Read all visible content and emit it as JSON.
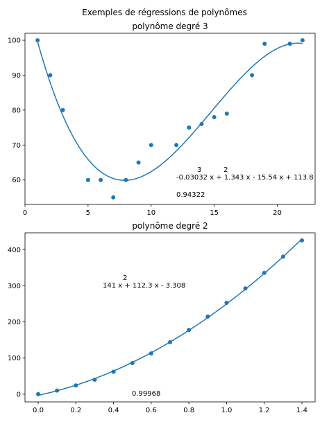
{
  "figure": {
    "suptitle": "Exemples de régressions de polynômes"
  },
  "colors": {
    "series": "#1f77b4"
  },
  "chart_data": [
    {
      "type": "scatter",
      "title": "polynôme degré 3",
      "xlabel": "",
      "ylabel": "",
      "xlim": [
        0,
        23
      ],
      "ylim": [
        53,
        102
      ],
      "xticks": [
        0,
        5,
        10,
        15,
        20
      ],
      "yticks": [
        60,
        70,
        80,
        90,
        100
      ],
      "grid": false,
      "legend": "none",
      "x": [
        1,
        2,
        3,
        5,
        6,
        7,
        8,
        9,
        10,
        12,
        13,
        14,
        15,
        16,
        18,
        19,
        21,
        22
      ],
      "y": [
        100,
        90,
        80,
        60,
        60,
        55,
        60,
        65,
        70,
        70,
        75,
        76,
        78,
        79,
        90,
        99,
        99,
        100
      ],
      "fit": {
        "coefficients": [
          -0.03032,
          1.343,
          -15.54,
          113.8
        ],
        "range": [
          1,
          22
        ]
      },
      "annotations": {
        "equation_exponents": "3          2",
        "equation": "-0.03032 x + 1.343 x - 15.54 x + 113.8",
        "r2": "0.94322",
        "equation_pos": [
          12.1,
          60
        ],
        "r2_pos": [
          12.1,
          55.5
        ]
      }
    },
    {
      "type": "scatter",
      "title": "polynôme degré 2",
      "xlabel": "",
      "ylabel": "",
      "xlim": [
        -0.07,
        1.47
      ],
      "ylim": [
        -21.5,
        447
      ],
      "xticks": [
        0.0,
        0.2,
        0.4,
        0.6,
        0.8,
        1.0,
        1.2,
        1.4
      ],
      "xtick_labels": [
        "0.0",
        "0.2",
        "0.4",
        "0.6",
        "0.8",
        "1.0",
        "1.2",
        "1.4"
      ],
      "yticks": [
        0,
        100,
        200,
        300,
        400
      ],
      "grid": false,
      "legend": "none",
      "x": [
        0.0,
        0.1,
        0.2,
        0.3,
        0.4,
        0.5,
        0.6,
        0.7,
        0.8,
        0.9,
        1.0,
        1.1,
        1.2,
        1.3,
        1.4
      ],
      "y": [
        0,
        10,
        24,
        40,
        62,
        86,
        113,
        144,
        178,
        215,
        253,
        293,
        336,
        381,
        426
      ],
      "fit": {
        "coefficients": [
          141,
          112.3,
          -3.308
        ],
        "range": [
          0.0,
          1.4
        ]
      },
      "annotations": {
        "equation_exponents": "2",
        "equation": "141 x + 112.3 x - 3.308",
        "r2": "0.99968",
        "equation_pos": [
          0.35,
          300
        ],
        "r2_pos": [
          0.5,
          0
        ]
      }
    }
  ]
}
